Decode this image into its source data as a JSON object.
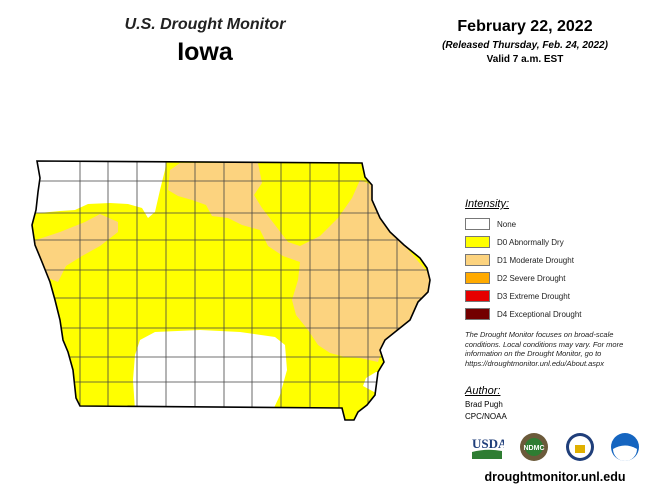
{
  "title": {
    "line1": "U.S. Drought Monitor",
    "state": "Iowa"
  },
  "date": {
    "main": "February 22, 2022",
    "released": "(Released Thursday, Feb. 24, 2022)",
    "valid": "Valid 7 a.m. EST"
  },
  "legend": {
    "heading": "Intensity:",
    "items": [
      {
        "label": "None",
        "color": "#ffffff"
      },
      {
        "label": "D0 Abnormally Dry",
        "color": "#ffff00"
      },
      {
        "label": "D1 Moderate Drought",
        "color": "#fcd37f"
      },
      {
        "label": "D2 Severe Drought",
        "color": "#ffaa00"
      },
      {
        "label": "D3 Extreme Drought",
        "color": "#e60000"
      },
      {
        "label": "D4 Exceptional Drought",
        "color": "#730000"
      }
    ]
  },
  "note": "The Drought Monitor focuses on broad-scale conditions. Local conditions may vary. For more information on the Drought Monitor, go to https://droughtmonitor.unl.edu/About.aspx",
  "author": {
    "heading": "Author:",
    "name": "Brad Pugh",
    "org": "CPC/NOAA"
  },
  "logos": [
    "USDA",
    "NDMC",
    "Department of Commerce",
    "NOAA"
  ],
  "site": "droughtmonitor.unl.edu"
}
